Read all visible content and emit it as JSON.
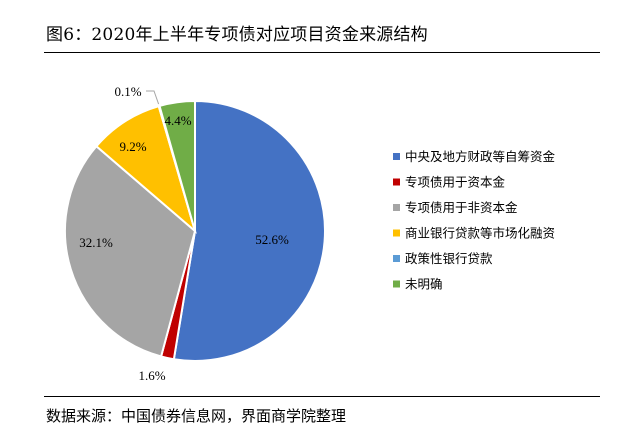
{
  "header": {
    "title": "图6：2020年上半年专项债对应项目资金来源结构"
  },
  "footer": {
    "source": "数据来源：中国债券信息网，界面商学院整理"
  },
  "chart_data": {
    "type": "pie",
    "title": "图6：2020年上半年专项债对应项目资金来源结构",
    "legend_position": "right",
    "slices": [
      {
        "label": "中央及地方财政等自筹资金",
        "value": 52.6,
        "display": "52.6%",
        "color": "#4472C4"
      },
      {
        "label": "专项债用于资本金",
        "value": 1.6,
        "display": "1.6%",
        "color": "#C00000"
      },
      {
        "label": "专项债用于非资本金",
        "value": 32.1,
        "display": "32.1%",
        "color": "#A5A5A5"
      },
      {
        "label": "商业银行贷款等市场化融资",
        "value": 9.2,
        "display": "9.2%",
        "color": "#FFC000"
      },
      {
        "label": "政策性银行贷款",
        "value": 0.1,
        "display": "0.1%",
        "color": "#5B9BD5"
      },
      {
        "label": "未明确",
        "value": 4.4,
        "display": "4.4%",
        "color": "#70AD47"
      }
    ]
  }
}
